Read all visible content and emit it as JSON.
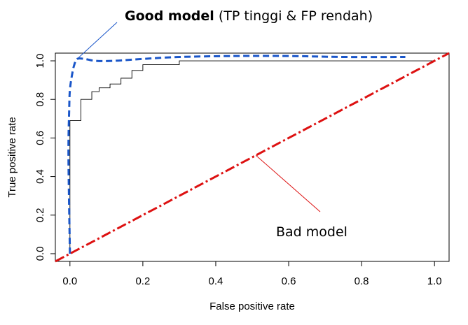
{
  "chart_data": {
    "type": "line",
    "xlabel": "False positive rate",
    "ylabel": "True positive rate",
    "xlim": [
      -0.04,
      1.04
    ],
    "ylim": [
      -0.04,
      1.04
    ],
    "x_ticks": [
      "0.0",
      "0.2",
      "0.4",
      "0.6",
      "0.8",
      "1.0"
    ],
    "y_ticks": [
      "0.0",
      "0.2",
      "0.4",
      "0.6",
      "0.8",
      "1.0"
    ],
    "grid": false,
    "series": [
      {
        "color": "#000000",
        "style": "step",
        "x": [
          0.0,
          0.0,
          0.03,
          0.03,
          0.06,
          0.06,
          0.08,
          0.08,
          0.11,
          0.11,
          0.14,
          0.14,
          0.17,
          0.17,
          0.2,
          0.2,
          0.3,
          0.3,
          1.0
        ],
        "y": [
          0.0,
          0.69,
          0.69,
          0.8,
          0.8,
          0.84,
          0.84,
          0.86,
          0.86,
          0.88,
          0.88,
          0.91,
          0.91,
          0.95,
          0.95,
          0.98,
          0.98,
          1.0,
          1.0
        ]
      },
      {
        "color": "#1a56c9",
        "style": "dashed",
        "x": [
          0.0,
          -0.004,
          -0.002,
          0.0,
          0.006,
          0.012,
          0.02,
          0.04,
          0.07,
          0.12,
          0.2,
          0.3,
          0.45,
          0.6,
          0.75,
          0.92
        ],
        "y": [
          0.0,
          0.5,
          0.75,
          0.85,
          0.93,
          0.98,
          1.01,
          1.01,
          1.0,
          1.0,
          1.01,
          1.02,
          1.025,
          1.025,
          1.02,
          1.02
        ]
      },
      {
        "color": "#dd1111",
        "style": "dashdot",
        "x": [
          -0.04,
          1.04
        ],
        "y": [
          -0.04,
          1.04
        ]
      }
    ],
    "annotations": {
      "good_bold": "Good model",
      "good_rest": " (TP tinggi & FP rendah)",
      "bad": "Bad model"
    }
  }
}
